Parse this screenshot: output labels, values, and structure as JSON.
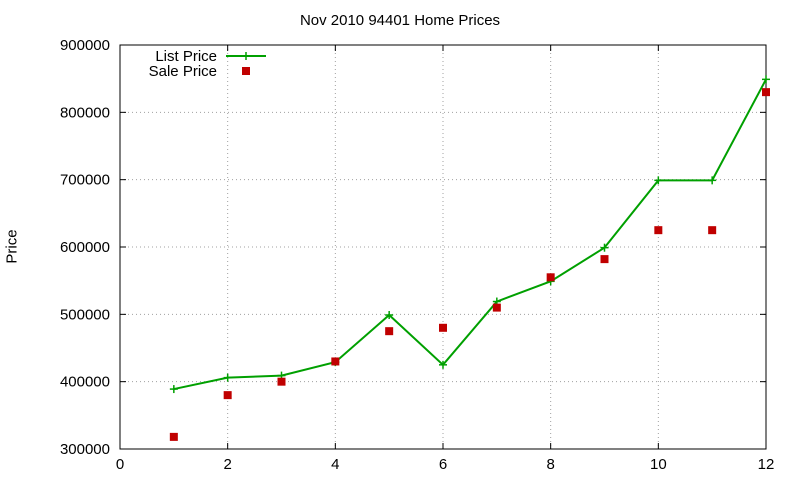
{
  "chart_data": {
    "type": "line",
    "title": "Nov 2010 94401 Home Prices",
    "xlabel": "",
    "ylabel": "Price",
    "xlim": [
      0,
      12
    ],
    "ylim": [
      300000,
      900000
    ],
    "xticks": [
      0,
      2,
      4,
      6,
      8,
      10,
      12
    ],
    "yticks": [
      300000,
      400000,
      500000,
      600000,
      700000,
      800000,
      900000
    ],
    "grid": true,
    "legend_position": "top-left",
    "series": [
      {
        "name": "List Price",
        "style": "line+cross",
        "color": "#00a000",
        "x": [
          1,
          2,
          3,
          4,
          5,
          6,
          7,
          8,
          9,
          10,
          11,
          12
        ],
        "values": [
          389000,
          406000,
          409000,
          429000,
          499000,
          425000,
          519000,
          549000,
          599000,
          699000,
          699000,
          849000
        ]
      },
      {
        "name": "Sale Price",
        "style": "square",
        "color": "#c00000",
        "x": [
          1,
          2,
          3,
          4,
          5,
          6,
          7,
          8,
          9,
          10,
          11,
          12
        ],
        "values": [
          318000,
          380000,
          400000,
          430000,
          475000,
          480000,
          510000,
          555000,
          582000,
          625000,
          625000,
          830000
        ]
      }
    ]
  }
}
